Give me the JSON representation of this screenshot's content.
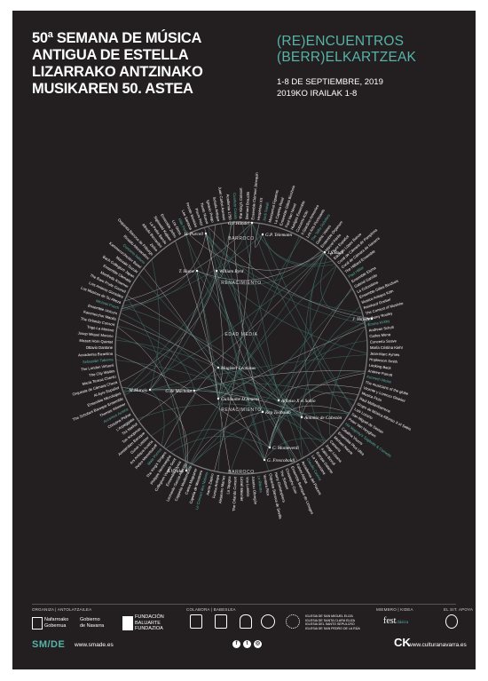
{
  "title": {
    "line1": "50ª SEMANA DE MÚSICA",
    "line2": "ANTIGUA DE ESTELLA",
    "line3": "LIZARRAKO ANTZINAKO",
    "line4": "MUSIKAREN 50. ASTEA"
  },
  "subtitle": {
    "line1": "(RE)ENCUENTROS",
    "line2": "(BERR)ELKARTZEAK"
  },
  "dates": {
    "line1": "1-8 DE SEPTIEMBRE, 2019",
    "line2": "2019KO IRAILAK 1-8"
  },
  "eras": {
    "barroco_top": "BARROCO",
    "renacimiento_top": "RENACIMIENTO",
    "edad_media": "EDAD MEDIA",
    "renacimiento_bottom": "RENACIMIENTO",
    "barroco_bottom": "BARROCO"
  },
  "composers": [
    {
      "name": "G.F.Händel",
      "key": "handel"
    },
    {
      "name": "H. Purcell",
      "key": "purcell"
    },
    {
      "name": "G.P. Telemann",
      "key": "telemann"
    },
    {
      "name": "J.S.Bach",
      "key": "bach"
    },
    {
      "name": "T. Hume",
      "key": "hume"
    },
    {
      "name": "William Byrd",
      "key": "byrd"
    },
    {
      "name": "J. Haydn",
      "key": "haydn"
    },
    {
      "name": "Magister Leoninus",
      "key": "leoninus"
    },
    {
      "name": "M.Marais",
      "key": "marais"
    },
    {
      "name": "G de Machaut",
      "key": "machaut"
    },
    {
      "name": "Guillaume D'Amiens",
      "key": "amiens"
    },
    {
      "name": "Alfonso X el Sabio",
      "key": "alfonso"
    },
    {
      "name": "Reg Toohaido",
      "key": "reg"
    },
    {
      "name": "Antonio de Cabezón",
      "key": "cabezon"
    },
    {
      "name": "C. Monteverdi",
      "key": "monteverdi"
    },
    {
      "name": "G. Frescobaldi",
      "key": "frescobaldi"
    },
    {
      "name": "A.Vivaldi",
      "key": "vivaldi"
    }
  ],
  "ensembles": [
    "The King's Consort",
    "Bernard Brauchli",
    "Ensemble Clément Janequin",
    "Hespèrion XX",
    "Jordi Savall",
    "Montserrat Figueras",
    "La Capella Reial",
    "Ensemble Gilles Binchois",
    "Paul Van Nevel",
    "Huelgas Ensemble",
    "Concerto Köln",
    "Il Giardino Armonico",
    "Les Arts Florissants",
    "The Tallis Scholars",
    "Gothic Voices",
    "Ensemble Organum",
    "Marcel Pérès",
    "Al Ayre Español",
    "Eduardo López Banzo",
    "Coral de Cámara de Pamplona",
    "Coral de Cámara de Navarra",
    "The Hilliard Ensemble",
    "Paul Hillier",
    "Ensemble Elyma",
    "Gabriel Garrido",
    "La Colombina",
    "Ensemble Gilles Binchois",
    "Musica Antiqua Köln",
    "Reinhard Goebel",
    "The Consort of Musicke",
    "Anthony Rooley",
    "Emma Kirkby",
    "Andreas Scholl",
    "Carlos Mena",
    "Concerto Soave",
    "María Cristina Kiehr",
    "Jean-Marc Aymes",
    "Hopkinson Smith",
    "Looking Back",
    "Andrew Parrott",
    "Kenneth Weiss",
    "The musicians of the globe",
    "Vicente y Lorenzo Ghielmi",
    "Musica Ficta",
    "Raúl Mallavibarrena",
    "Grupo de Música Alfonso X el Sabio",
    "Luis Lozano",
    "San Miguel de Sestao",
    "Peter Van Heyghen",
    "His Majesty's Sagbutts & Cornetts",
    "Catalina Vicens",
    "Ensemble Plus Ultra",
    "Michael Noone",
    "Cantoría",
    "Jorge Losana",
    "Fabio Biondi",
    "Europa Galante",
    "La Venexiana",
    "Claudio Cavina",
    "Accademia del Piacere",
    "Fahmi Alqhai",
    "Ensemble Baroque de Limoges",
    "Christophe Coin",
    "The Sixteen",
    "Harry Christophers",
    "Orquesta Barroca de Sevilla",
    "Ventura Rico",
    "La Ritirata",
    "Josetxu Obregón",
    "Vox Luminis",
    "Lionel Meunier",
    "The Orlando Consort",
    "La Spagna",
    "Alejandro Marías",
    "Forma Antiqva",
    "Aarón Zapico",
    "Le Concert des Nations",
    "Capella de Ministrers",
    "Carles Magraner",
    "Cappella Mediterranea",
    "Leonardo García Alarcón",
    "Ensemble Elyma",
    "Collegium Vocale Gent",
    "Philippe Herreweghe",
    "The King's Singers",
    "Mala Punica",
    "Pedro Memelsdorff",
    "Ars Antiqua Austria",
    "Gunar Letzbor",
    "Amsterdam Baroque",
    "Ton Koopman",
    "Tini Mathot",
    "L'Arpeggiata",
    "Christina Pluhar",
    "Accentus Austria",
    "Thomas Wimmer",
    "The Scholars Baroque Ensemble",
    "Ensemble Micrologus",
    "Al Ayre Español",
    "Orquesta de Cámara Checa",
    "María Teresa Chenlo",
    "The City Waites",
    "The London Virtuosi",
    "Sebastián Taberna",
    "Accademia Bizantina",
    "Ottavio Dantone",
    "Mozart Horn Quintet",
    "Josep Miquel Moreno",
    "Trigo La Moreno",
    "The Orlando Consort",
    "Kammerchor Manila",
    "Ensemble Unicorn",
    "Michael Posch",
    "Los Músicos de Su Alteza",
    "Luis Antonio González",
    "The Rare Fruits Council",
    "Manfredo Kraemer",
    "Ensemble Clematis",
    "Bach Collegium Japan",
    "Masaaki Suzuki",
    "Kammerorchester Basel",
    "Concerto Italiano",
    "Rinaldo Alessandrini",
    "Orquesta Barroca de Friburgo",
    "Zefiro",
    "Alfredo Bernardini",
    "La Petite Bande",
    "Sigiswald Kuijken",
    "Ensemble Zefiro",
    "Los Otros",
    "Hille Perl",
    "Lee Santana",
    "Private Musicke",
    "Pierre Pitzl",
    "Tiento Nuovo",
    "Ignacio Prego",
    "Schola Antiqua",
    "Juan Carlos Asensio",
    "Academia 1750",
    "Cuarteto Casals"
  ],
  "footer": {
    "label_organiza": "ORGANIZA | ANTOLATZAILEA",
    "label_colabora": "COLABORA | BABESLEA",
    "label_miembro": "MIEMBRO | KIDEA",
    "label_patrocina": "EL SIT. APOYA",
    "navarra1": "Nafarroako",
    "navarra2": "Gobernua",
    "navarra3": "Gobierno",
    "navarra4": "de Navarra",
    "baluarte1": "FUNDACIÓN",
    "baluarte2": "BALUARTE",
    "baluarte3": "FUNDAZIOA",
    "festclasica": "fest",
    "festclasica2": "clásica",
    "smde": "SM/DE",
    "smde_url": "www.smade.es",
    "ck": "CK",
    "cultura_url": "www.culturanavarra.es",
    "colab_churches": "IGLESIA DE SAN MIGUEL ELIZA",
    "colab_churches2": "IGLESIA DE SANTA CLARA ELIZA",
    "colab_churches3": "IGLESIA DEL SANTO SEPULCRO",
    "colab_churches4": "IGLESIA DE SAN PEDRO DE LA RÚA"
  },
  "colors": {
    "background": "#231f20",
    "accent": "#57b3a8",
    "text": "#ffffff",
    "line_dark": "#3f6f69",
    "line_light": "#cfcfcf"
  }
}
